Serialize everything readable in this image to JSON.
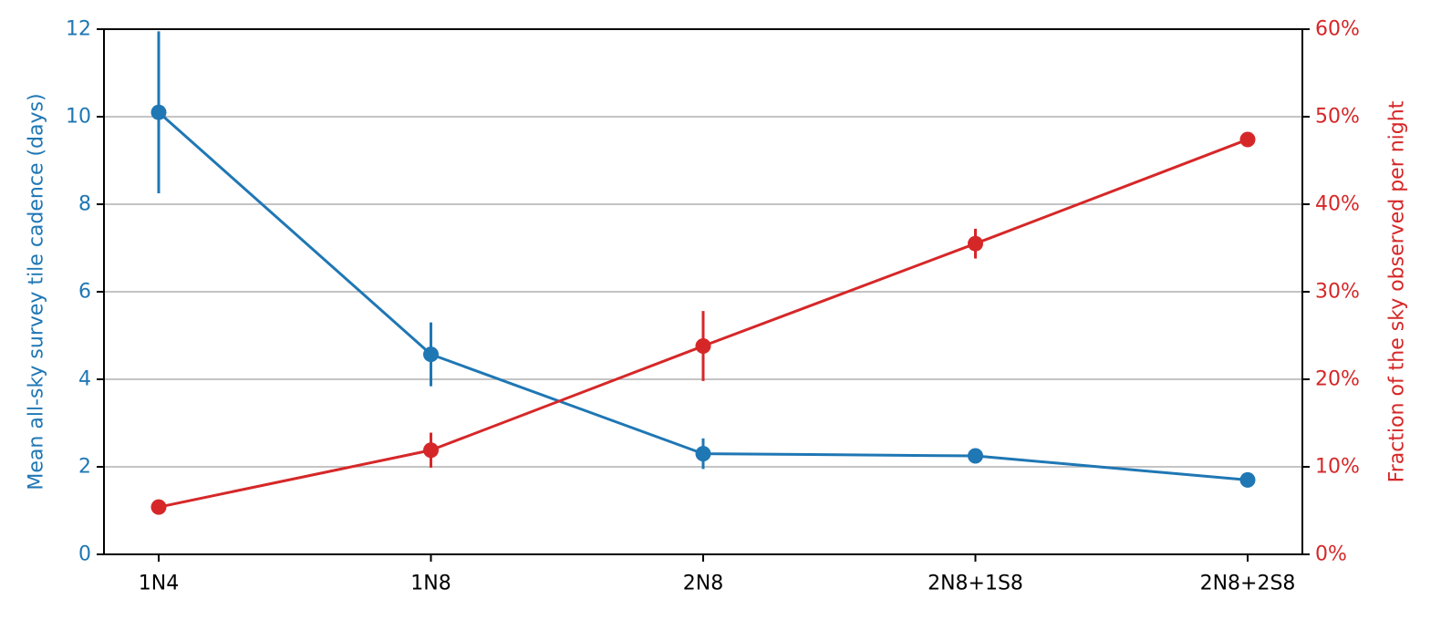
{
  "chart_data": {
    "type": "line",
    "categories": [
      "1N4",
      "1N8",
      "2N8",
      "2N8+1S8",
      "2N8+2S8"
    ],
    "series": [
      {
        "name": "",
        "axis": "left",
        "color": "#1f77b4",
        "values": [
          10.1,
          4.57,
          2.3,
          2.25,
          1.7
        ],
        "error": [
          1.85,
          0.73,
          0.35,
          0.15,
          0.1
        ]
      },
      {
        "name": "",
        "axis": "right",
        "color": "#d62728",
        "values": [
          5.4,
          11.9,
          23.8,
          35.5,
          47.4
        ],
        "error": [
          0.7,
          2.0,
          4.0,
          1.7,
          0.5
        ]
      }
    ],
    "y_left": {
      "label": "Mean all-sky survey tile cadence (days)",
      "ylim": [
        0,
        12
      ],
      "ticks": [
        "0",
        "2",
        "4",
        "6",
        "8",
        "10",
        "12"
      ],
      "tick_values": [
        0,
        2,
        4,
        6,
        8,
        10,
        12
      ],
      "color": "#1f77b4"
    },
    "y_right": {
      "label": "Fraction of the sky observed per night",
      "ylim": [
        0,
        60
      ],
      "ticks": [
        "0%",
        "10%",
        "20%",
        "30%",
        "40%",
        "50%",
        "60%"
      ],
      "tick_values": [
        0,
        10,
        20,
        30,
        40,
        50,
        60
      ],
      "color": "#d62728"
    },
    "grid": "horizontal",
    "grid_color": "#b0b0b0",
    "axis_color": "#000000"
  }
}
